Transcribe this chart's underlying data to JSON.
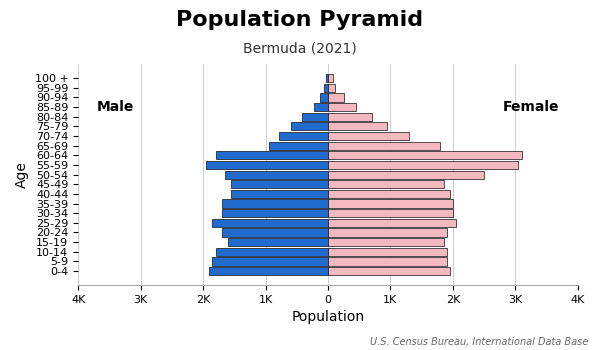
{
  "title": "Population Pyramid",
  "subtitle": "Bermuda (2021)",
  "xlabel": "Population",
  "ylabel": "Age",
  "source": "U.S. Census Bureau, International Data Base",
  "age_groups": [
    "0-4",
    "5-9",
    "10-14",
    "15-19",
    "20-24",
    "25-29",
    "30-34",
    "35-39",
    "40-44",
    "45-49",
    "50-54",
    "55-59",
    "60-64",
    "65-69",
    "70-74",
    "75-79",
    "80-84",
    "85-89",
    "90-94",
    "95-99",
    "100 +"
  ],
  "male": [
    1900,
    1850,
    1800,
    1600,
    1700,
    1850,
    1700,
    1700,
    1550,
    1550,
    1650,
    1950,
    1800,
    950,
    780,
    600,
    410,
    220,
    120,
    60,
    30
  ],
  "female": [
    1950,
    1900,
    1900,
    1850,
    1900,
    2050,
    2000,
    2000,
    1950,
    1850,
    2500,
    3050,
    3100,
    1800,
    1300,
    950,
    700,
    450,
    250,
    120,
    80
  ],
  "male_color": "#1f6bce",
  "female_color": "#f4b8c1",
  "bar_edgecolor": "#111111",
  "bar_linewidth": 0.5,
  "xlim": 4000,
  "xtick_vals": [
    -4000,
    -3000,
    -2000,
    -1000,
    0,
    1000,
    2000,
    3000,
    4000
  ],
  "xtick_labels": [
    "4K",
    "3K",
    "2K",
    "1K",
    "0",
    "1K",
    "2K",
    "3K",
    "4K"
  ],
  "background_color": "#ffffff",
  "grid_color": "#cccccc",
  "title_fontsize": 16,
  "subtitle_fontsize": 10,
  "label_fontsize": 10,
  "tick_fontsize": 8,
  "source_fontsize": 7
}
